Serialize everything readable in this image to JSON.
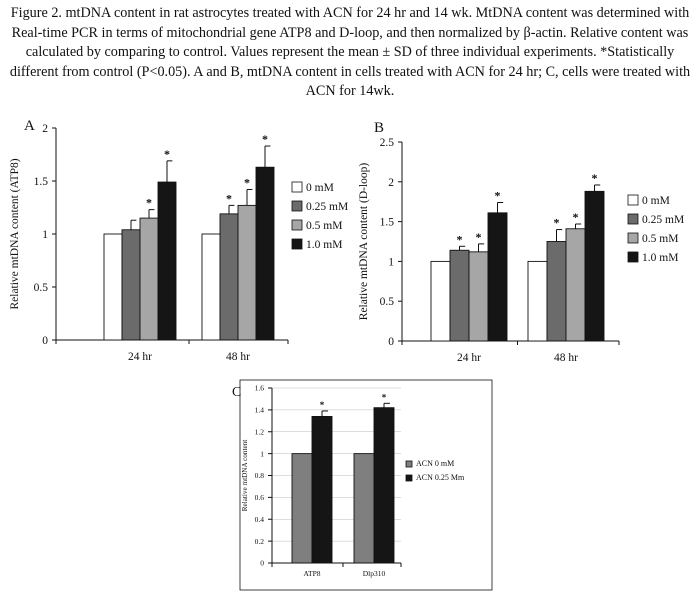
{
  "caption": "Figure 2. mtDNA content in rat astrocytes treated with ACN for 24 hr and 14 wk. MtDNA content was determined with Real-time PCR in terms of mitochondrial gene ATP8 and D-loop, and then normalized by β-actin. Relative content was calculated by comparing to control. Values represent the mean ± SD of three individual experiments. *Statistically different from control (P<0.05). A and B, mtDNA content in cells treated with ACN for 24 hr; C, cells were treated with ACN for 14wk.",
  "colors": {
    "white_bar": "#ffffff",
    "dark_gray": "#6b6b6b",
    "light_gray": "#a6a6a6",
    "black_bar": "#151515",
    "panel_c_gray": "#7f7f7f",
    "panel_c_black": "#151515"
  },
  "chart_data": [
    {
      "panel_label": "A",
      "type": "bar",
      "ylabel": "Relative mtDNA content (ATP8)",
      "categories": [
        "24 hr",
        "48 hr"
      ],
      "ylim": [
        0,
        2
      ],
      "yticks": [
        "0",
        "0.5",
        "1",
        "1.5",
        "2"
      ],
      "legend_position": "right",
      "series": [
        {
          "name": "0 mM",
          "values": [
            1.0,
            1.0
          ],
          "errors": [
            0,
            0
          ],
          "sig": [
            false,
            false
          ]
        },
        {
          "name": "0.25 mM",
          "values": [
            1.04,
            1.19
          ],
          "errors": [
            0.09,
            0.08
          ],
          "sig": [
            false,
            true
          ]
        },
        {
          "name": "0.5 mM",
          "values": [
            1.15,
            1.27
          ],
          "errors": [
            0.08,
            0.15
          ],
          "sig": [
            true,
            true
          ]
        },
        {
          "name": "1.0 mM",
          "values": [
            1.49,
            1.63
          ],
          "errors": [
            0.2,
            0.2
          ],
          "sig": [
            true,
            true
          ]
        }
      ],
      "significance_marker": "*"
    },
    {
      "panel_label": "B",
      "type": "bar",
      "ylabel": "Relative mtDNA content (D-loop)",
      "categories": [
        "24 hr",
        "48 hr"
      ],
      "ylim": [
        0,
        2.5
      ],
      "yticks": [
        "0",
        "0.5",
        "1",
        "1.5",
        "2",
        "2.5"
      ],
      "legend_position": "right",
      "series": [
        {
          "name": "0 mM",
          "values": [
            1.0,
            1.0
          ],
          "errors": [
            0,
            0
          ],
          "sig": [
            false,
            false
          ]
        },
        {
          "name": "0.25 mM",
          "values": [
            1.14,
            1.25
          ],
          "errors": [
            0.05,
            0.15
          ],
          "sig": [
            true,
            true
          ]
        },
        {
          "name": "0.5 mM",
          "values": [
            1.12,
            1.41
          ],
          "errors": [
            0.1,
            0.06
          ],
          "sig": [
            true,
            true
          ]
        },
        {
          "name": "1.0 mM",
          "values": [
            1.61,
            1.88
          ],
          "errors": [
            0.13,
            0.08
          ],
          "sig": [
            true,
            true
          ]
        }
      ],
      "significance_marker": "*"
    },
    {
      "panel_label": "C",
      "type": "bar",
      "ylabel": "Relative mtDNA content",
      "categories": [
        "ATP8",
        "Dlp310"
      ],
      "ylim": [
        0,
        1.6
      ],
      "yticks": [
        "0",
        "0.2",
        "0.4",
        "0.6",
        "0.8",
        "1",
        "1.2",
        "1.4",
        "1.6"
      ],
      "legend_position": "right",
      "series": [
        {
          "name": "ACN 0 mM",
          "values": [
            1.0,
            1.0
          ],
          "errors": [
            0,
            0
          ],
          "sig": [
            false,
            false
          ]
        },
        {
          "name": "ACN 0.25 Mm",
          "values": [
            1.34,
            1.42
          ],
          "errors": [
            0.05,
            0.04
          ],
          "sig": [
            true,
            true
          ]
        }
      ],
      "significance_marker": "*"
    }
  ]
}
